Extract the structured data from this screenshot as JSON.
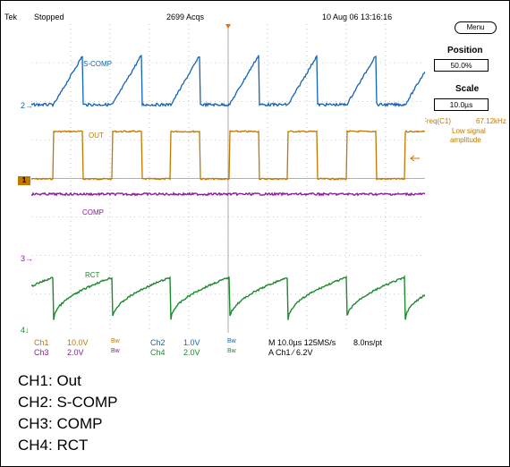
{
  "header": {
    "brand": "Tek",
    "status": "Stopped",
    "acqs": "2699 Acqs",
    "datetime": "10 Aug 06 13:16:16"
  },
  "side": {
    "menu_label": "Menu",
    "position_label": "Position",
    "position_value": "50.0%",
    "scale_label": "Scale",
    "scale_value": "10.0µs",
    "freq_label": "Freq(C1)",
    "freq_value": "67.12kHz",
    "freq_note_1": "Low signal",
    "freq_note_2": "amplitude"
  },
  "traces": {
    "scomp": "S-COMP",
    "out": "OUT",
    "comp": "COMP",
    "rct": "RCT"
  },
  "markers": {
    "ch2": "2",
    "ch1": "1",
    "ch3": "3",
    "ch4": "4"
  },
  "readout": {
    "ch1": "Ch1",
    "ch1_volts": "10.0V",
    "bw1": "Bw",
    "ch2": "Ch2",
    "ch2_volts": "1.0V",
    "bw2": "Bw",
    "ch3": "Ch3",
    "ch3_volts": "2.0V",
    "bw3": "Bw",
    "ch4": "Ch4",
    "ch4_volts": "2.0V",
    "bw4": "Bw",
    "timebase": "M 10.0µs 125MS/s",
    "sample": "8.0ns/pt",
    "trigger": "A  Ch1  ⁄  6.2V"
  },
  "colors": {
    "ch1": "#c07800",
    "ch2": "#1463b4",
    "ch3": "#8b1f9b",
    "ch4": "#1e8a2e",
    "grid": "#9a9a9a"
  },
  "caption": {
    "line1": "CH1: Out",
    "line2": "CH2: S-COMP",
    "line3": "CH3: COMP",
    "line4": "CH4: RCT"
  }
}
